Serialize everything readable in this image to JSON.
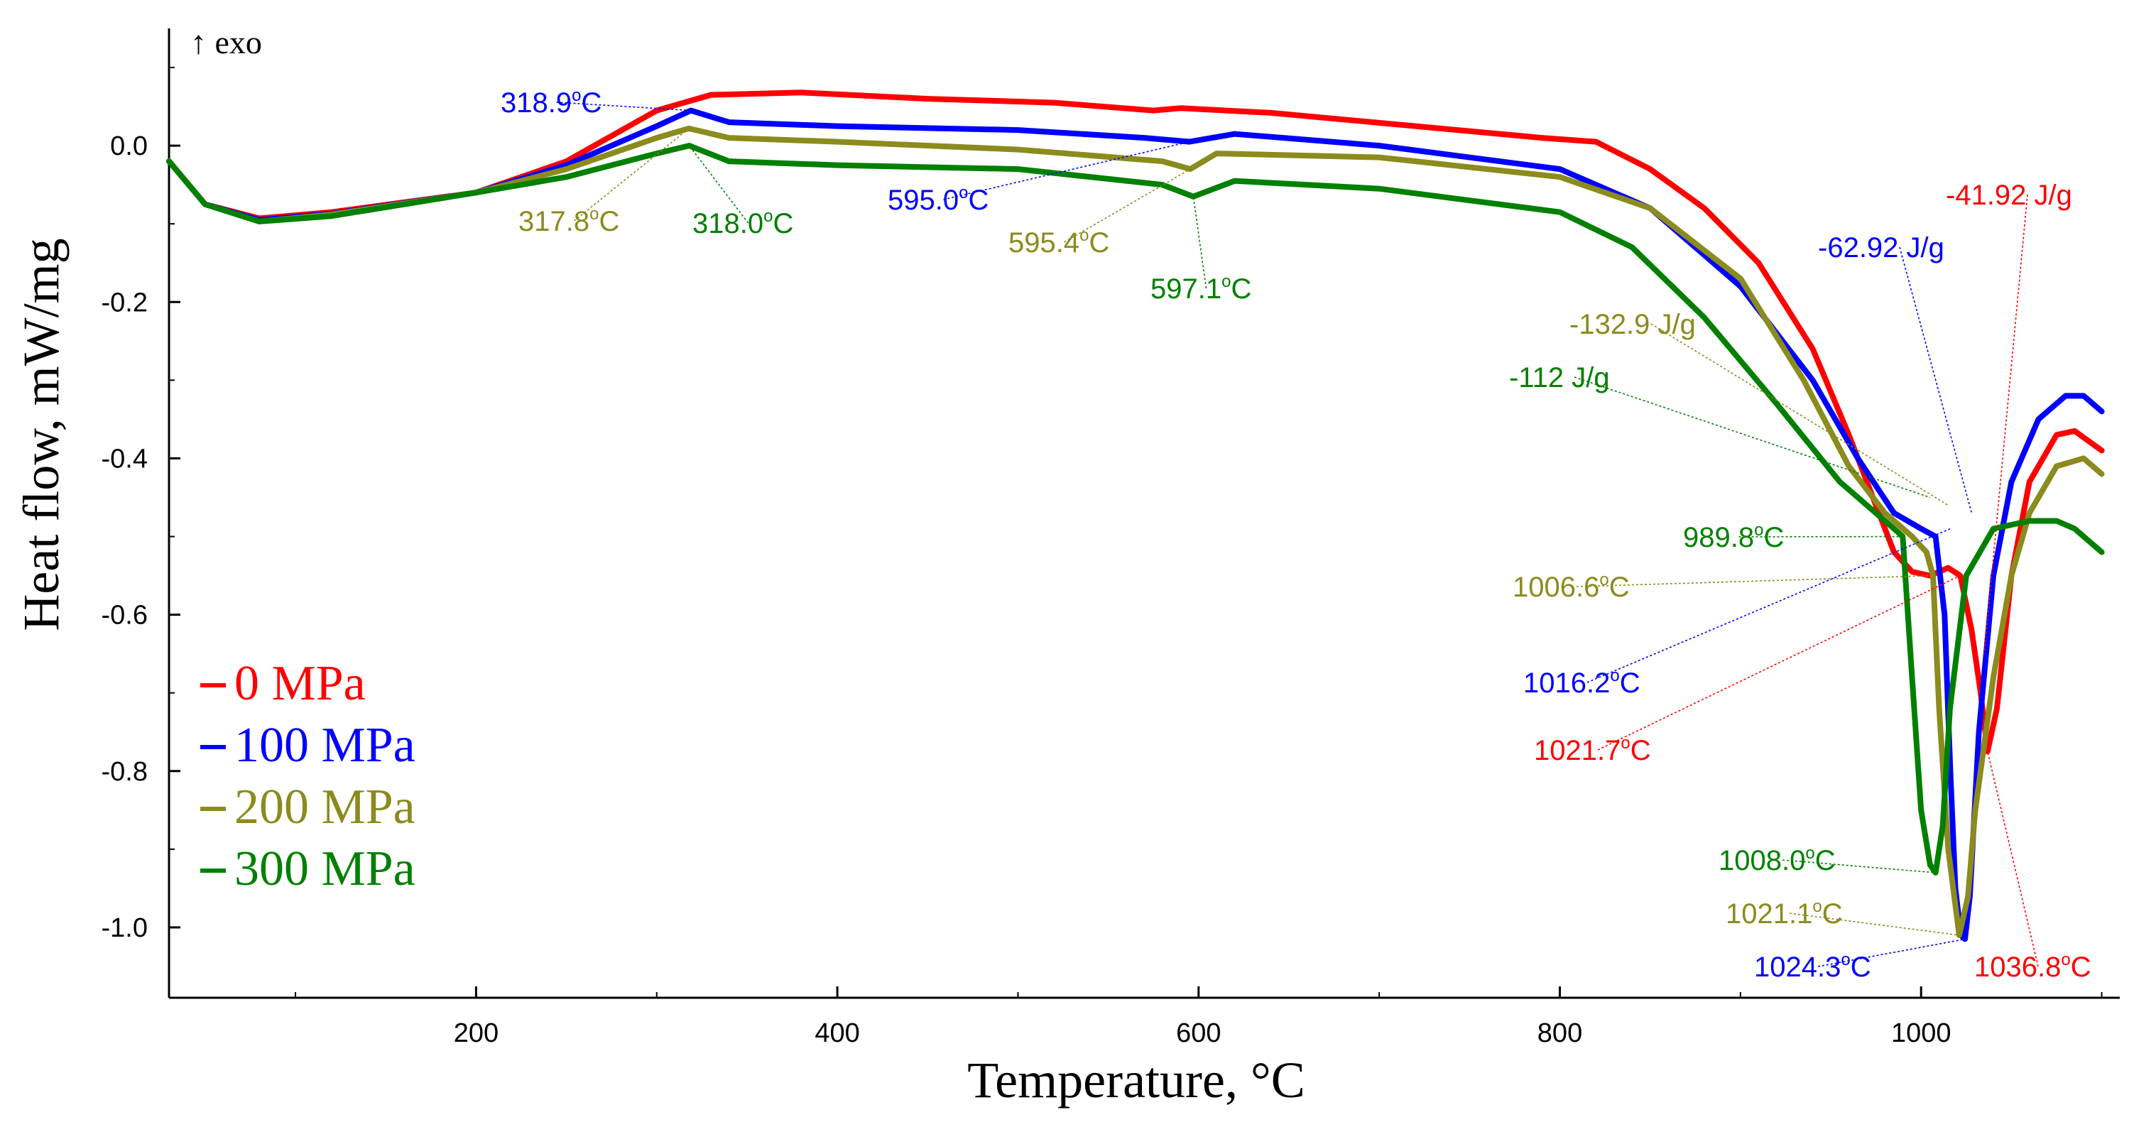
{
  "chart_data": {
    "type": "line",
    "title": "",
    "exo_marker": "↑ exo",
    "xlabel": "Temperature, °C",
    "ylabel": "Heat flow, mW/mg",
    "xlim": [
      30,
      1110
    ],
    "ylim": [
      -1.09,
      0.15
    ],
    "x_ticks": [
      200,
      400,
      600,
      800,
      1000
    ],
    "y_ticks": [
      0.0,
      -0.2,
      -0.4,
      -0.6,
      -0.8,
      -1.0
    ],
    "y_tick_labels": [
      "0.0",
      "-0.2",
      "-0.4",
      "-0.6",
      "-0.8",
      "-1.0"
    ],
    "legend_position": "bottom-left",
    "series": [
      {
        "name": "0 MPa",
        "color": "#ff0000",
        "x": [
          30,
          50,
          80,
          120,
          200,
          250,
          300,
          330,
          380,
          450,
          520,
          575,
          590,
          640,
          720,
          790,
          820,
          850,
          880,
          910,
          940,
          960,
          975,
          985,
          995,
          1005,
          1015,
          1021.7,
          1028,
          1033,
          1036.8,
          1042,
          1050,
          1060,
          1075,
          1085,
          1100
        ],
        "y": [
          -0.02,
          -0.075,
          -0.093,
          -0.085,
          -0.06,
          -0.02,
          0.045,
          0.065,
          0.068,
          0.06,
          0.055,
          0.045,
          0.048,
          0.042,
          0.025,
          0.01,
          0.005,
          -0.03,
          -0.08,
          -0.15,
          -0.26,
          -0.37,
          -0.46,
          -0.52,
          -0.545,
          -0.55,
          -0.54,
          -0.55,
          -0.62,
          -0.7,
          -0.775,
          -0.72,
          -0.55,
          -0.43,
          -0.37,
          -0.365,
          -0.39
        ]
      },
      {
        "name": "100 MPa",
        "color": "#0000ff",
        "x": [
          30,
          50,
          80,
          120,
          200,
          250,
          300,
          318.9,
          340,
          400,
          500,
          570,
          595,
          620,
          700,
          800,
          850,
          900,
          940,
          965,
          985,
          1000,
          1008,
          1013,
          1016.2,
          1019,
          1022,
          1024.3,
          1027,
          1032,
          1040,
          1050,
          1065,
          1080,
          1090,
          1100
        ],
        "y": [
          -0.02,
          -0.075,
          -0.095,
          -0.087,
          -0.06,
          -0.025,
          0.025,
          0.045,
          0.03,
          0.025,
          0.02,
          0.01,
          0.005,
          0.015,
          0.0,
          -0.03,
          -0.08,
          -0.18,
          -0.3,
          -0.4,
          -0.47,
          -0.49,
          -0.5,
          -0.6,
          -0.8,
          -0.95,
          -1.01,
          -1.015,
          -0.96,
          -0.75,
          -0.55,
          -0.43,
          -0.35,
          -0.32,
          -0.32,
          -0.34
        ]
      },
      {
        "name": "200 MPa",
        "color": "#8b8b1e",
        "x": [
          30,
          50,
          80,
          120,
          200,
          250,
          300,
          317.8,
          340,
          400,
          500,
          580,
          595.4,
          610,
          700,
          800,
          850,
          900,
          935,
          960,
          980,
          995,
          1003,
          1006.6,
          1010,
          1015,
          1021.1,
          1026,
          1030,
          1040,
          1050,
          1060,
          1075,
          1090,
          1100
        ],
        "y": [
          -0.02,
          -0.075,
          -0.097,
          -0.088,
          -0.06,
          -0.03,
          0.01,
          0.022,
          0.01,
          0.005,
          -0.005,
          -0.02,
          -0.03,
          -0.01,
          -0.015,
          -0.04,
          -0.08,
          -0.17,
          -0.3,
          -0.41,
          -0.47,
          -0.5,
          -0.52,
          -0.55,
          -0.72,
          -0.9,
          -1.01,
          -0.96,
          -0.85,
          -0.68,
          -0.55,
          -0.47,
          -0.41,
          -0.4,
          -0.42
        ]
      },
      {
        "name": "300 MPa",
        "color": "#008000",
        "x": [
          30,
          50,
          80,
          120,
          200,
          250,
          300,
          318.0,
          340,
          400,
          500,
          580,
          597.1,
          620,
          700,
          800,
          840,
          880,
          920,
          955,
          975,
          985,
          989.8,
          995,
          1000,
          1005,
          1008.0,
          1012,
          1016,
          1025,
          1040,
          1060,
          1075,
          1085,
          1100
        ],
        "y": [
          -0.02,
          -0.075,
          -0.097,
          -0.09,
          -0.06,
          -0.04,
          -0.01,
          0.0,
          -0.02,
          -0.025,
          -0.03,
          -0.05,
          -0.065,
          -0.045,
          -0.055,
          -0.085,
          -0.13,
          -0.22,
          -0.33,
          -0.43,
          -0.47,
          -0.49,
          -0.5,
          -0.68,
          -0.85,
          -0.92,
          -0.93,
          -0.87,
          -0.72,
          -0.55,
          -0.49,
          -0.48,
          -0.48,
          -0.49,
          -0.52
        ]
      }
    ],
    "legend": [
      {
        "label": "0 MPa",
        "color": "#ff0000"
      },
      {
        "label": "100 MPa",
        "color": "#0000ff"
      },
      {
        "label": "200 MPa",
        "color": "#8b8b1e"
      },
      {
        "label": "300 MPa",
        "color": "#008000"
      }
    ],
    "annotations": [
      {
        "name": "peak-318-9",
        "text": "318.9",
        "color": "#0000ff",
        "point": [
          318.9,
          0.045
        ]
      },
      {
        "name": "peak-317-8",
        "text": "317.8",
        "color": "#8b8b1e",
        "point": [
          317.8,
          0.022
        ]
      },
      {
        "name": "peak-318-0",
        "text": "318.0",
        "color": "#008000",
        "point": [
          318.0,
          0.0
        ]
      },
      {
        "name": "peak-595-0",
        "text": "595.0",
        "color": "#0000ff",
        "point": [
          595.0,
          0.005
        ]
      },
      {
        "name": "peak-595-4",
        "text": "595.4",
        "color": "#8b8b1e",
        "point": [
          595.4,
          -0.03
        ]
      },
      {
        "name": "peak-597-1",
        "text": "597.1",
        "color": "#008000",
        "point": [
          597.1,
          -0.065
        ]
      },
      {
        "name": "onset-989-8",
        "text": "989.8",
        "color": "#008000",
        "point": [
          989.8,
          -0.5
        ]
      },
      {
        "name": "onset-1006-6",
        "text": "1006.6",
        "color": "#8b8b1e",
        "point": [
          1006.6,
          -0.55
        ]
      },
      {
        "name": "onset-1016-2",
        "text": "1016.2",
        "color": "#0000ff",
        "point": [
          1016.2,
          -0.49
        ]
      },
      {
        "name": "onset-1021-7",
        "text": "1021.7",
        "color": "#ff0000",
        "point": [
          1021.7,
          -0.55
        ]
      },
      {
        "name": "min-1008-0",
        "text": "1008.0",
        "color": "#008000",
        "point": [
          1008.0,
          -0.93
        ]
      },
      {
        "name": "min-1021-1",
        "text": "1021.1",
        "color": "#8b8b1e",
        "point": [
          1021.1,
          -1.01
        ]
      },
      {
        "name": "min-1024-3",
        "text": "1024.3",
        "color": "#0000ff",
        "point": [
          1024.3,
          -1.015
        ]
      },
      {
        "name": "min-1036-8",
        "text": "1036.8",
        "color": "#ff0000",
        "point": [
          1036.8,
          -0.775
        ]
      },
      {
        "name": "enthalpy-0",
        "text": "-41.92 J/g",
        "color": "#ff0000",
        "point": [
          1035,
          -0.65
        ]
      },
      {
        "name": "enthalpy-100",
        "text": "-62.92 J/g",
        "color": "#0000ff",
        "point": [
          1028,
          -0.47
        ]
      },
      {
        "name": "enthalpy-200",
        "text": "-132.9 J/g",
        "color": "#8b8b1e",
        "point": [
          1015,
          -0.46
        ]
      },
      {
        "name": "enthalpy-300",
        "text": "-112 J/g",
        "color": "#008000",
        "point": [
          1005,
          -0.45
        ]
      }
    ]
  }
}
